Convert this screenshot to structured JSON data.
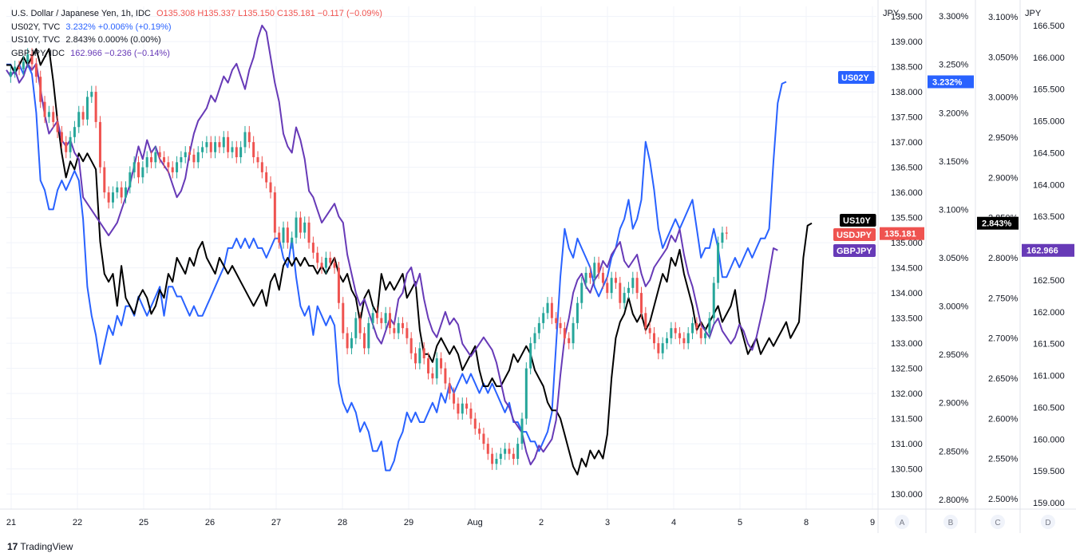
{
  "legend": {
    "usdjpy_name": "U.S. Dollar / Japanese Yen, 1h, IDC",
    "usdjpy_ohlc": "O135.308  H135.337  L135.150  C135.181  −0.117  (−0.09%)",
    "us02y_name": "US02Y, TVC",
    "us02y_vals": "3.232%  +0.006%  (+0.19%)",
    "us10y_name": "US10Y, TVC",
    "us10y_vals": "2.843%  0.000%  (0.00%)",
    "gbpjpy_name": "GBPJPY, IDC",
    "gbpjpy_vals": "162.966  −0.236  (−0.14%)"
  },
  "branding": {
    "logo": "TradingView"
  },
  "colors": {
    "usdjpy_up": "#26a69a",
    "usdjpy_down": "#ef5350",
    "us02y": "#2962ff",
    "us10y": "#000000",
    "gbpjpy": "#673ab7"
  },
  "chart_data": {
    "type": "line",
    "x_tick_labels": [
      "21",
      "22",
      "25",
      "26",
      "27",
      "28",
      "29",
      "Aug",
      "2",
      "3",
      "4",
      "5",
      "8",
      "9"
    ],
    "scales": [
      {
        "id": "A",
        "title": "JPY",
        "ticks": [
          "139.500",
          "139.000",
          "138.500",
          "138.000",
          "137.500",
          "137.000",
          "136.500",
          "136.000",
          "135.500",
          "135.000",
          "134.500",
          "134.000",
          "133.500",
          "133.000",
          "132.500",
          "132.000",
          "131.500",
          "131.000",
          "130.500",
          "130.000"
        ],
        "range": [
          129.7,
          139.7
        ]
      },
      {
        "id": "B",
        "title": "",
        "ticks": [
          "3.300%",
          "3.250%",
          "3.200%",
          "3.150%",
          "3.100%",
          "3.050%",
          "3.000%",
          "2.950%",
          "2.900%",
          "2.850%",
          "2.800%"
        ],
        "range": [
          2.79,
          3.31
        ]
      },
      {
        "id": "C",
        "title": "",
        "ticks": [
          "3.100%",
          "3.050%",
          "3.000%",
          "2.950%",
          "2.900%",
          "2.850%",
          "2.800%",
          "2.750%",
          "2.700%",
          "2.650%",
          "2.600%",
          "2.550%",
          "2.500%"
        ],
        "range": [
          2.487,
          3.113
        ]
      },
      {
        "id": "D",
        "title": "JPY",
        "ticks": [
          "166.500",
          "166.000",
          "165.500",
          "165.000",
          "164.500",
          "164.000",
          "163.500",
          "163.000",
          "162.500",
          "162.000",
          "161.500",
          "161.000",
          "160.500",
          "160.000",
          "159.500",
          "159.000"
        ],
        "range": [
          158.9,
          166.8
        ]
      }
    ],
    "series": [
      {
        "name": "US02Y",
        "scale": "B",
        "last_label": "3.232%",
        "values": [
          3.25,
          3.25,
          3.24,
          3.25,
          3.24,
          3.25,
          3.24,
          3.2,
          3.13,
          3.12,
          3.1,
          3.1,
          3.12,
          3.13,
          3.12,
          3.13,
          3.14,
          3.13,
          3.09,
          3.02,
          2.99,
          2.97,
          2.94,
          2.96,
          2.98,
          2.97,
          2.99,
          2.98,
          3.0,
          3.0,
          2.99,
          3.01,
          3.0,
          2.99,
          3.0,
          3.01,
          3.02,
          2.99,
          3.02,
          3.02,
          3.01,
          3.01,
          3.0,
          2.99,
          3.0,
          2.99,
          2.99,
          3.0,
          3.01,
          3.02,
          3.03,
          3.04,
          3.06,
          3.06,
          3.07,
          3.06,
          3.07,
          3.06,
          3.07,
          3.06,
          3.06,
          3.05,
          3.06,
          3.07,
          3.07,
          3.05,
          3.04,
          3.07,
          3.03,
          3.0,
          2.99,
          3.0,
          2.97,
          3.0,
          2.99,
          2.98,
          2.99,
          2.98,
          2.92,
          2.9,
          2.89,
          2.9,
          2.89,
          2.87,
          2.88,
          2.87,
          2.85,
          2.85,
          2.86,
          2.83,
          2.83,
          2.84,
          2.86,
          2.87,
          2.89,
          2.88,
          2.89,
          2.88,
          2.88,
          2.89,
          2.9,
          2.89,
          2.91,
          2.9,
          2.92,
          2.91,
          2.92,
          2.93,
          2.92,
          2.93,
          2.92,
          2.91,
          2.92,
          2.91,
          2.92,
          2.91,
          2.9,
          2.89,
          2.9,
          2.88,
          2.88,
          2.87,
          2.87,
          2.86,
          2.86,
          2.85,
          2.86,
          2.87,
          2.89,
          2.96,
          3.03,
          3.08,
          3.06,
          3.05,
          3.07,
          3.06,
          3.05,
          3.04,
          3.02,
          3.01,
          3.02,
          3.03,
          3.05,
          3.06,
          3.08,
          3.09,
          3.11,
          3.08,
          3.09,
          3.11,
          3.17,
          3.15,
          3.12,
          3.08,
          3.06,
          3.07,
          3.08,
          3.09,
          3.08,
          3.09,
          3.1,
          3.11,
          3.08,
          3.05,
          3.06,
          3.06,
          3.08,
          3.06,
          3.03,
          3.03,
          3.04,
          3.05,
          3.04,
          3.05,
          3.06,
          3.05,
          3.06,
          3.07,
          3.07,
          3.08,
          3.15,
          3.21,
          3.23,
          3.232
        ]
      },
      {
        "name": "US10Y",
        "scale": "C",
        "last_label": "2.843%",
        "values": [
          3.04,
          3.04,
          3.03,
          3.04,
          3.05,
          3.04,
          3.05,
          3.06,
          3.04,
          3.05,
          3.06,
          3.02,
          2.97,
          2.93,
          2.9,
          2.92,
          2.91,
          2.93,
          2.92,
          2.93,
          2.92,
          2.91,
          2.82,
          2.78,
          2.77,
          2.78,
          2.74,
          2.79,
          2.75,
          2.74,
          2.73,
          2.75,
          2.76,
          2.75,
          2.73,
          2.74,
          2.76,
          2.75,
          2.78,
          2.77,
          2.8,
          2.79,
          2.78,
          2.8,
          2.79,
          2.81,
          2.82,
          2.8,
          2.79,
          2.78,
          2.8,
          2.79,
          2.78,
          2.79,
          2.78,
          2.77,
          2.76,
          2.75,
          2.74,
          2.75,
          2.76,
          2.74,
          2.77,
          2.78,
          2.76,
          2.79,
          2.8,
          2.79,
          2.8,
          2.79,
          2.8,
          2.79,
          2.79,
          2.78,
          2.79,
          2.78,
          2.79,
          2.8,
          2.78,
          2.77,
          2.78,
          2.76,
          2.75,
          2.72,
          2.75,
          2.76,
          2.74,
          2.73,
          2.78,
          2.76,
          2.77,
          2.76,
          2.77,
          2.78,
          2.75,
          2.76,
          2.77,
          2.71,
          2.68,
          2.68,
          2.67,
          2.69,
          2.7,
          2.69,
          2.68,
          2.69,
          2.68,
          2.66,
          2.67,
          2.68,
          2.69,
          2.66,
          2.64,
          2.64,
          2.65,
          2.64,
          2.64,
          2.65,
          2.66,
          2.68,
          2.67,
          2.68,
          2.69,
          2.68,
          2.66,
          2.65,
          2.64,
          2.62,
          2.61,
          2.61,
          2.6,
          2.58,
          2.56,
          2.54,
          2.53,
          2.55,
          2.54,
          2.56,
          2.55,
          2.56,
          2.55,
          2.58,
          2.65,
          2.7,
          2.72,
          2.73,
          2.75,
          2.73,
          2.72,
          2.73,
          2.71,
          2.72,
          2.74,
          2.76,
          2.78,
          2.77,
          2.8,
          2.79,
          2.81,
          2.78,
          2.76,
          2.74,
          2.71,
          2.72,
          2.71,
          2.72,
          2.73,
          2.74,
          2.72,
          2.73,
          2.74,
          2.76,
          2.72,
          2.7,
          2.68,
          2.69,
          2.7,
          2.68,
          2.69,
          2.7,
          2.69,
          2.7,
          2.71,
          2.72,
          2.7,
          2.71,
          2.72,
          2.8,
          2.84,
          2.843
        ]
      },
      {
        "name": "GBPJPY",
        "scale": "D",
        "last_label": "162.966",
        "values": [
          165.8,
          165.7,
          165.8,
          165.6,
          165.7,
          165.9,
          165.8,
          165.9,
          165.5,
          165.1,
          164.8,
          164.9,
          165.0,
          164.7,
          164.6,
          164.7,
          164.5,
          164.4,
          163.8,
          163.7,
          163.6,
          163.5,
          163.4,
          163.3,
          163.2,
          163.3,
          163.4,
          163.6,
          163.8,
          164.0,
          164.3,
          164.6,
          164.4,
          164.7,
          164.5,
          164.6,
          164.4,
          164.3,
          164.2,
          164.0,
          163.8,
          163.9,
          164.1,
          164.5,
          164.8,
          165.0,
          165.1,
          165.2,
          165.4,
          165.3,
          165.5,
          165.7,
          165.6,
          165.8,
          165.9,
          165.7,
          165.5,
          165.8,
          166.0,
          166.3,
          166.5,
          166.4,
          166.0,
          165.6,
          165.3,
          164.8,
          164.6,
          164.5,
          164.9,
          164.7,
          164.4,
          163.9,
          163.8,
          163.6,
          163.4,
          163.5,
          163.6,
          163.7,
          163.5,
          163.4,
          162.9,
          162.6,
          162.3,
          162.1,
          162.2,
          162.0,
          161.8,
          161.6,
          161.5,
          161.7,
          161.9,
          161.8,
          162.2,
          162.3,
          162.6,
          162.7,
          162.4,
          162.6,
          162.2,
          161.9,
          161.7,
          161.6,
          161.8,
          162.0,
          161.8,
          161.9,
          161.8,
          161.5,
          161.4,
          161.3,
          161.4,
          161.5,
          161.6,
          161.5,
          161.4,
          161.2,
          160.9,
          160.6,
          160.5,
          160.3,
          160.2,
          160.1,
          159.8,
          159.6,
          159.7,
          159.9,
          159.8,
          159.9,
          160.0,
          160.3,
          161.0,
          161.6,
          161.9,
          162.3,
          162.5,
          162.6,
          162.4,
          162.3,
          162.5,
          162.6,
          162.8,
          162.7,
          162.9,
          163.0,
          163.1,
          162.8,
          162.7,
          162.8,
          162.9,
          162.6,
          162.4,
          162.5,
          162.7,
          162.8,
          162.9,
          163.0,
          163.2,
          163.1,
          163.3,
          162.9,
          162.6,
          162.4,
          162.1,
          161.8,
          161.7,
          161.6,
          161.8,
          161.9,
          161.7,
          161.6,
          161.5,
          161.6,
          161.8,
          161.7,
          161.5,
          161.4,
          161.6,
          161.9,
          162.2,
          162.6,
          163.0,
          162.966
        ]
      },
      {
        "name": "USDJPY",
        "scale": "A",
        "last_label": "135.181",
        "candles": true,
        "values": [
          138.3,
          138.4,
          138.5,
          138.45,
          138.6,
          138.75,
          138.55,
          138.3,
          137.8,
          137.5,
          137.6,
          137.4,
          137.2,
          137.0,
          136.8,
          137.1,
          137.3,
          137.6,
          137.45,
          137.9,
          138.0,
          137.4,
          136.5,
          136.0,
          135.8,
          136.0,
          136.1,
          135.9,
          136.1,
          136.4,
          136.6,
          136.3,
          136.5,
          136.7,
          136.6,
          136.8,
          136.7,
          136.6,
          136.5,
          136.4,
          136.6,
          136.7,
          136.8,
          136.75,
          136.6,
          136.8,
          136.9,
          137.0,
          136.8,
          137.0,
          136.9,
          137.1,
          136.8,
          136.9,
          136.7,
          136.9,
          137.2,
          137.0,
          136.7,
          136.6,
          136.4,
          136.2,
          136.0,
          135.2,
          135.0,
          135.3,
          135.0,
          135.1,
          135.5,
          135.2,
          135.4,
          135.0,
          134.8,
          134.6,
          134.5,
          134.7,
          134.6,
          134.5,
          133.8,
          133.2,
          132.9,
          133.1,
          133.5,
          133.2,
          132.9,
          133.4,
          133.6,
          133.5,
          133.4,
          133.6,
          133.3,
          133.2,
          133.4,
          133.3,
          133.1,
          132.8,
          132.6,
          132.9,
          132.7,
          132.4,
          132.3,
          132.7,
          132.5,
          132.2,
          132.0,
          131.8,
          131.6,
          131.8,
          131.7,
          131.5,
          131.3,
          131.2,
          131.0,
          130.8,
          130.6,
          130.7,
          130.8,
          130.9,
          130.8,
          130.7,
          131.0,
          131.5,
          132.5,
          133.0,
          133.2,
          133.4,
          133.6,
          133.8,
          133.5,
          133.4,
          133.3,
          133.1,
          133.0,
          133.4,
          133.8,
          134.2,
          134.4,
          134.3,
          134.6,
          134.4,
          134.2,
          134.0,
          134.3,
          134.2,
          133.8,
          134.0,
          134.1,
          134.3,
          134.0,
          133.6,
          133.3,
          133.2,
          133.0,
          132.8,
          133.0,
          133.1,
          133.3,
          133.2,
          133.1,
          133.0,
          133.2,
          133.4,
          133.3,
          133.1,
          133.2,
          133.5,
          134.2,
          135.0,
          135.2,
          135.181
        ]
      }
    ],
    "price_tags": [
      {
        "series": "US02Y",
        "scale": "B",
        "value": 3.232,
        "text": "3.232%"
      },
      {
        "series": "US10Y",
        "scale": "C",
        "value": 2.843,
        "text": "2.843%"
      },
      {
        "series": "USDJPY",
        "scale": "A",
        "value": 135.181,
        "text": "135.181"
      },
      {
        "series": "GBPJPY",
        "scale": "D",
        "value": 162.966,
        "text": "162.966"
      }
    ]
  }
}
